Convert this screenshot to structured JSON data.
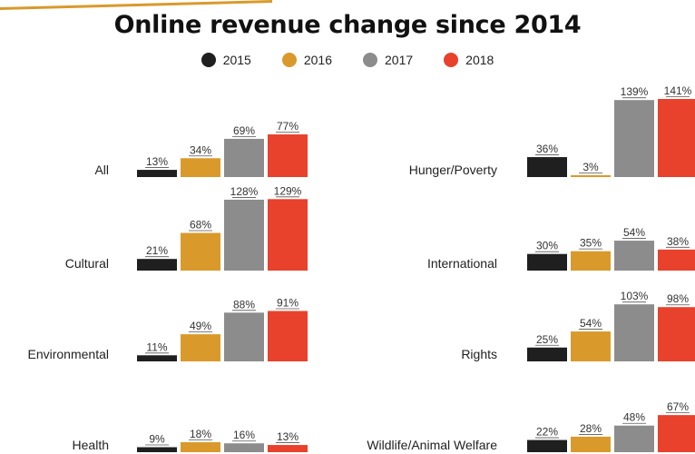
{
  "colors": {
    "2015": "#1f1f1f",
    "2016": "#d99a2b",
    "2017": "#8c8c8c",
    "2018": "#e8412c",
    "accent": "#d99a2b"
  },
  "chart_data": {
    "type": "bar",
    "title": "Online revenue change since 2014",
    "legend_placement": "top-center",
    "series_names": [
      "2015",
      "2016",
      "2017",
      "2018"
    ],
    "categories": [
      "All",
      "Cultural",
      "Environmental",
      "Health",
      "Hunger/Poverty",
      "International",
      "Rights",
      "Wildlife/Animal Welfare"
    ],
    "series": [
      {
        "name": "2015",
        "values": [
          13,
          21,
          11,
          9,
          36,
          30,
          25,
          22
        ]
      },
      {
        "name": "2016",
        "values": [
          34,
          68,
          49,
          18,
          3,
          35,
          54,
          28
        ]
      },
      {
        "name": "2017",
        "values": [
          69,
          128,
          88,
          16,
          139,
          54,
          103,
          48
        ]
      },
      {
        "name": "2018",
        "values": [
          77,
          129,
          91,
          13,
          141,
          38,
          98,
          67
        ]
      }
    ],
    "value_labels": [
      [
        "13%",
        "34%",
        "69%",
        "77%"
      ],
      [
        "21%",
        "68%",
        "128%",
        "129%"
      ],
      [
        "11%",
        "49%",
        "88%",
        "91%"
      ],
      [
        "9%",
        "18%",
        "16%",
        "13%"
      ],
      [
        "36%",
        "3%",
        "139%",
        "141%"
      ],
      [
        "30%",
        "35%",
        "54%",
        "38%"
      ],
      [
        "25%",
        "54%",
        "103%",
        "98%"
      ],
      [
        "22%",
        "28%",
        "48%",
        "67%"
      ]
    ],
    "unit": "%"
  }
}
